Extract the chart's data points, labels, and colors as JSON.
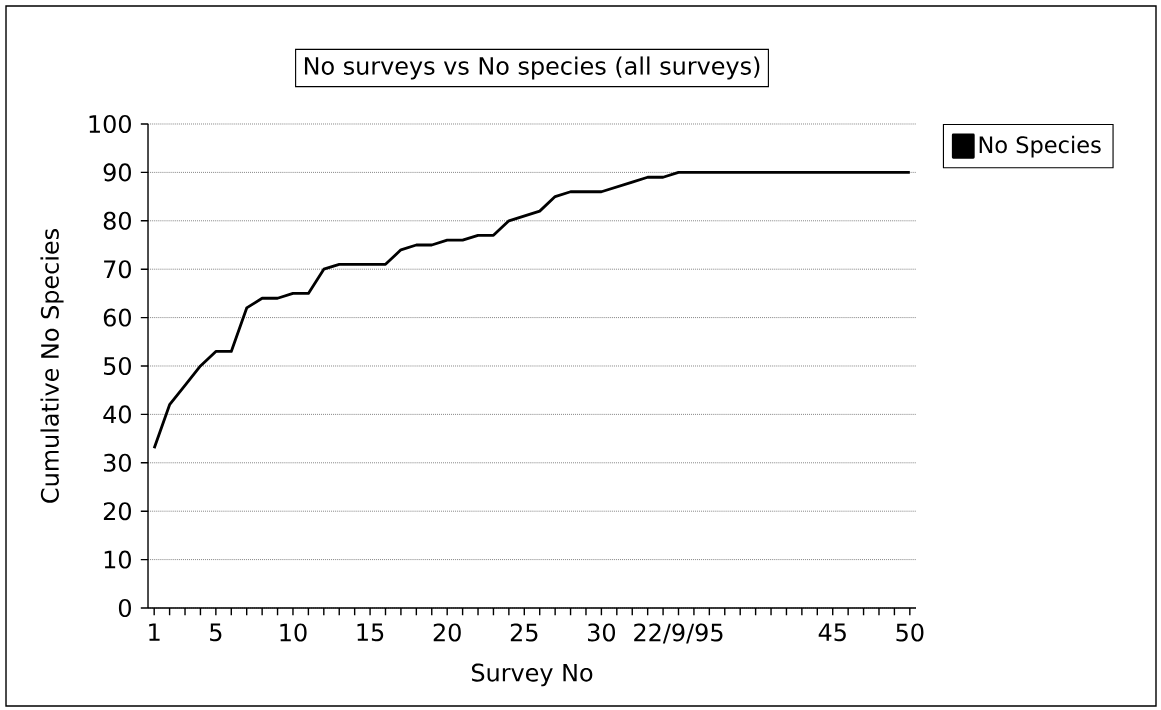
{
  "chart_data": {
    "type": "line",
    "title": "No surveys vs No species (all surveys)",
    "xlabel": "Survey No",
    "ylabel": "Cumulative No Species",
    "categories": [
      "1",
      null,
      null,
      null,
      "5",
      null,
      null,
      null,
      null,
      "10",
      null,
      null,
      null,
      null,
      "15",
      null,
      null,
      null,
      null,
      "20",
      null,
      null,
      null,
      null,
      "25",
      null,
      null,
      null,
      null,
      "30",
      null,
      null,
      null,
      null,
      "22/9/95",
      null,
      null,
      null,
      null,
      null,
      null,
      null,
      null,
      null,
      "45",
      null,
      null,
      null,
      null,
      "50"
    ],
    "series": [
      {
        "name": "No Species",
        "color": "#000000",
        "values": [
          33,
          42,
          46,
          50,
          53,
          53,
          62,
          64,
          64,
          65,
          65,
          70,
          71,
          71,
          71,
          71,
          74,
          75,
          75,
          76,
          76,
          77,
          77,
          80,
          81,
          82,
          85,
          86,
          86,
          86,
          87,
          88,
          89,
          89,
          90,
          90,
          90,
          90,
          90,
          90,
          90,
          90,
          90,
          90,
          90,
          90,
          90,
          90,
          90,
          90
        ]
      }
    ],
    "ylim": [
      0,
      100
    ],
    "yticks": [
      0,
      10,
      20,
      30,
      40,
      50,
      60,
      70,
      80,
      90,
      100
    ],
    "grid": "y",
    "legend": "right",
    "marker": "none",
    "line_style": "solid"
  }
}
